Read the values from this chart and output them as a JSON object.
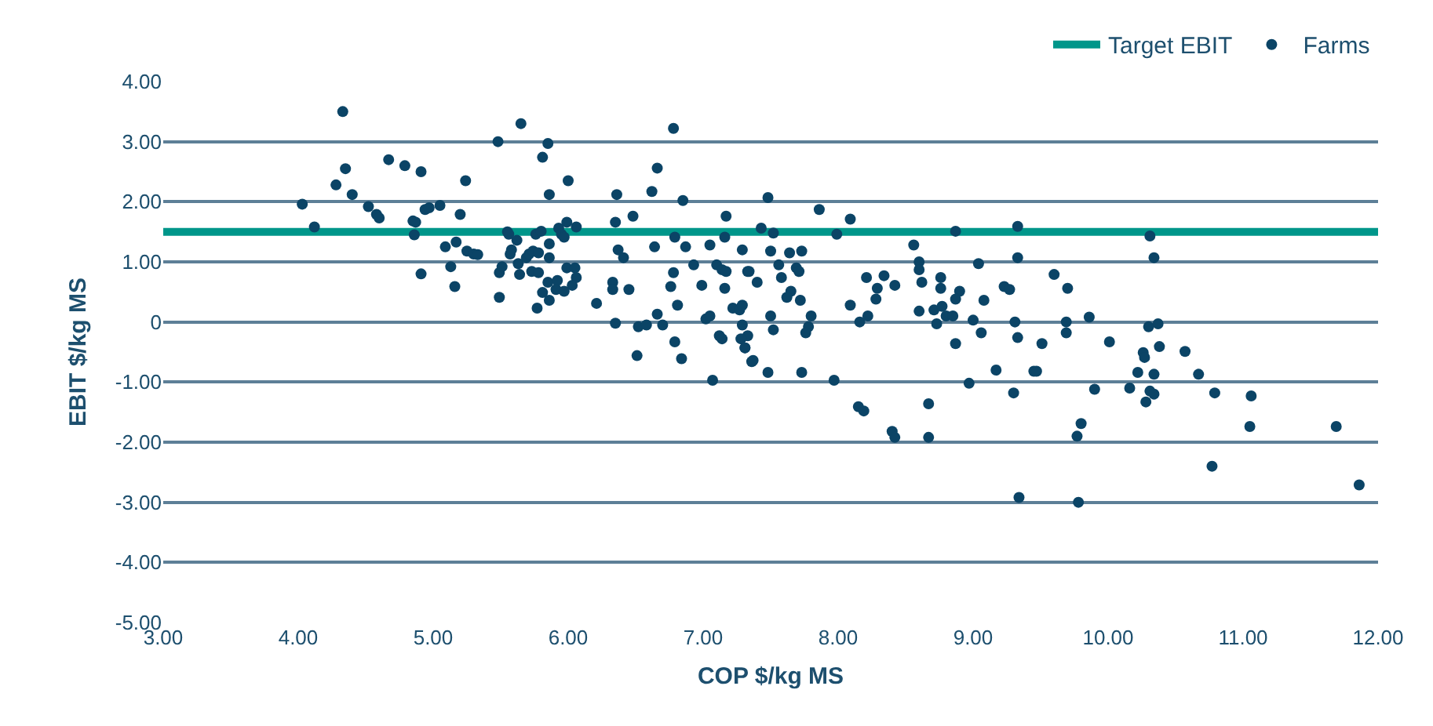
{
  "chart_data": {
    "type": "scatter",
    "xlabel": "COP $/kg MS",
    "ylabel": "EBIT $/kg MS",
    "xlim": [
      3,
      12
    ],
    "ylim": [
      -5,
      4
    ],
    "xticks": [
      {
        "value": 3,
        "label": "3.00"
      },
      {
        "value": 4,
        "label": "4.00"
      },
      {
        "value": 5,
        "label": "5.00"
      },
      {
        "value": 6,
        "label": "6.00"
      },
      {
        "value": 7,
        "label": "7.00"
      },
      {
        "value": 8,
        "label": "8.00"
      },
      {
        "value": 9,
        "label": "9.00"
      },
      {
        "value": 10,
        "label": "10.00"
      },
      {
        "value": 11,
        "label": "11.00"
      },
      {
        "value": 12,
        "label": "12.00"
      }
    ],
    "yticks": [
      {
        "value": -5,
        "label": "-5.00"
      },
      {
        "value": -4,
        "label": "-4.00"
      },
      {
        "value": -3,
        "label": "-3.00"
      },
      {
        "value": -2,
        "label": "-2.00"
      },
      {
        "value": -1,
        "label": "-1.00"
      },
      {
        "value": 0,
        "label": "0"
      },
      {
        "value": 1,
        "label": "1.00"
      },
      {
        "value": 2,
        "label": "2.00"
      },
      {
        "value": 3,
        "label": "3.00"
      },
      {
        "value": 4,
        "label": "4.00"
      }
    ],
    "grid": "y",
    "legend": "top right",
    "marker": "circle",
    "ref_lines": [
      {
        "axis": "y",
        "value": 1.5,
        "label": "Target EBIT",
        "color": "#00968a"
      }
    ],
    "series": [
      {
        "name": "Farms",
        "color": "#0b4466",
        "x": [
          4.03,
          4.12,
          4.28,
          4.35,
          4.33,
          4.4,
          4.52,
          4.58,
          4.6,
          4.67,
          4.79,
          4.91,
          4.85,
          4.87,
          4.86,
          4.91,
          4.94,
          4.97,
          5.05,
          5.09,
          5.17,
          5.13,
          5.16,
          5.2,
          5.24,
          5.25,
          5.3,
          5.33,
          5.48,
          5.65,
          5.85,
          5.81,
          6.0,
          5.86,
          5.49,
          5.51,
          5.49,
          5.55,
          5.56,
          5.58,
          5.57,
          5.62,
          5.64,
          5.63,
          5.69,
          5.71,
          5.74,
          5.78,
          5.73,
          5.78,
          5.76,
          5.8,
          5.86,
          5.86,
          5.85,
          5.77,
          5.81,
          5.86,
          5.93,
          5.95,
          5.99,
          6.06,
          5.97,
          5.99,
          6.05,
          6.06,
          6.03,
          5.92,
          5.91,
          5.97,
          6.21,
          6.33,
          6.33,
          6.45,
          6.35,
          6.36,
          6.35,
          6.37,
          6.41,
          6.48,
          6.51,
          6.52,
          6.58,
          6.62,
          6.66,
          6.64,
          6.66,
          6.7,
          6.78,
          6.76,
          6.78,
          6.79,
          6.81,
          6.79,
          6.84,
          6.85,
          6.87,
          6.93,
          6.99,
          7.02,
          7.05,
          7.05,
          7.1,
          7.14,
          7.17,
          7.16,
          7.12,
          7.14,
          7.07,
          7.17,
          7.16,
          7.29,
          7.33,
          7.22,
          7.27,
          7.29,
          7.29,
          7.33,
          7.28,
          7.31,
          7.36,
          7.48,
          7.43,
          7.52,
          7.86,
          8.09,
          7.99,
          7.5,
          7.64,
          7.73,
          7.56,
          7.69,
          7.71,
          7.58,
          7.65,
          7.62,
          7.72,
          7.8,
          7.78,
          7.76,
          7.52,
          7.5,
          7.4,
          7.34,
          7.37,
          7.31,
          7.48,
          7.73,
          7.97,
          8.09,
          8.16,
          8.22,
          8.21,
          8.29,
          8.28,
          8.34,
          8.42,
          8.15,
          8.19,
          8.4,
          8.42,
          8.56,
          8.6,
          8.6,
          8.62,
          8.6,
          8.67,
          8.67,
          8.71,
          8.76,
          8.76,
          8.77,
          8.73,
          8.8,
          8.85,
          8.87,
          8.87,
          8.9,
          8.87,
          9.04,
          9.0,
          9.06,
          9.08,
          8.97,
          9.17,
          9.3,
          9.23,
          9.27,
          9.33,
          9.33,
          9.31,
          9.33,
          9.45,
          9.34,
          9.6,
          9.7,
          9.51,
          9.47,
          9.69,
          9.69,
          9.86,
          9.8,
          9.77,
          9.78,
          9.9,
          10.01,
          10.16,
          10.22,
          10.26,
          10.27,
          10.31,
          10.34,
          10.3,
          10.37,
          10.38,
          10.34,
          10.31,
          10.34,
          10.28,
          10.57,
          10.67,
          10.79,
          10.77,
          11.06,
          11.05,
          11.69,
          11.86
        ],
        "values": [
          1.96,
          1.58,
          2.28,
          2.55,
          3.5,
          2.12,
          1.92,
          1.79,
          1.73,
          2.7,
          2.6,
          2.5,
          1.68,
          1.66,
          1.45,
          0.8,
          1.87,
          1.9,
          1.94,
          1.25,
          1.33,
          0.92,
          0.59,
          1.79,
          2.35,
          1.18,
          1.13,
          1.12,
          3.0,
          3.3,
          2.97,
          2.74,
          2.35,
          2.12,
          0.82,
          0.92,
          0.41,
          1.5,
          1.46,
          1.2,
          1.13,
          1.36,
          0.79,
          0.97,
          1.07,
          1.13,
          1.18,
          1.15,
          0.84,
          0.82,
          1.46,
          1.51,
          1.3,
          1.07,
          0.66,
          0.23,
          0.49,
          0.36,
          1.56,
          1.46,
          1.66,
          1.58,
          1.41,
          0.9,
          0.9,
          0.74,
          0.61,
          0.69,
          0.54,
          0.51,
          0.31,
          0.66,
          0.54,
          0.54,
          -0.02,
          2.12,
          1.66,
          1.2,
          1.07,
          1.76,
          -0.56,
          -0.08,
          -0.05,
          2.17,
          2.56,
          1.25,
          0.13,
          -0.05,
          3.22,
          0.59,
          0.82,
          1.41,
          0.28,
          -0.33,
          -0.61,
          2.02,
          1.25,
          0.95,
          0.61,
          0.05,
          0.1,
          1.28,
          0.95,
          0.87,
          0.84,
          0.56,
          -0.23,
          -0.28,
          -0.97,
          1.76,
          1.41,
          1.2,
          0.84,
          0.23,
          0.2,
          0.28,
          -0.05,
          -0.23,
          -0.28,
          -0.43,
          -0.66,
          2.07,
          1.56,
          1.48,
          1.87,
          1.71,
          1.46,
          1.18,
          1.15,
          1.18,
          0.95,
          0.9,
          0.84,
          0.74,
          0.51,
          0.41,
          0.36,
          0.1,
          -0.08,
          -0.18,
          -0.13,
          0.1,
          0.66,
          0.84,
          -0.64,
          -0.43,
          -0.84,
          -0.84,
          -0.97,
          0.28,
          0,
          0.1,
          0.74,
          0.56,
          0.38,
          0.77,
          0.61,
          -1.41,
          -1.48,
          -1.82,
          -1.92,
          1.28,
          1.0,
          0.87,
          0.66,
          0.18,
          -1.36,
          -1.92,
          0.2,
          0.74,
          0.56,
          0.26,
          -0.03,
          0.1,
          0.1,
          -0.36,
          1.51,
          0.51,
          0.38,
          0.97,
          0.03,
          -0.18,
          0.36,
          -1.02,
          -0.8,
          -1.18,
          0.59,
          0.54,
          1.59,
          1.07,
          0,
          -0.26,
          -0.82,
          -2.92,
          0.79,
          0.56,
          -0.36,
          -0.82,
          0,
          -0.18,
          0.08,
          -1.69,
          -1.9,
          -3.0,
          -1.12,
          -0.33,
          -1.1,
          -0.84,
          -0.51,
          -0.59,
          1.43,
          1.07,
          -0.08,
          -0.03,
          -0.41,
          -0.87,
          -1.15,
          -1.2,
          -1.33,
          -0.49,
          -0.87,
          -1.18,
          -2.4,
          -1.23,
          -1.74,
          -1.74,
          -2.71
        ]
      }
    ]
  }
}
